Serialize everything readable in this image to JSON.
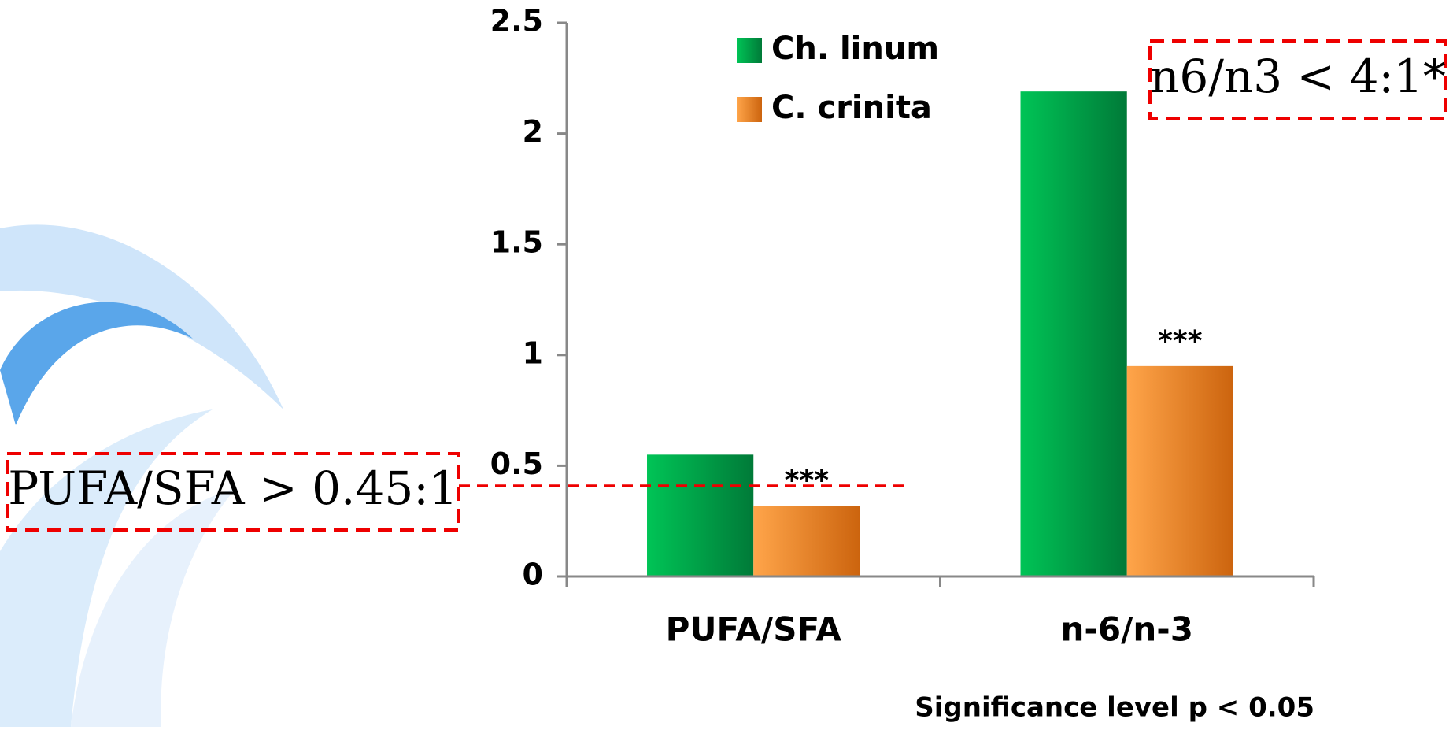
{
  "chart_data": {
    "type": "bar",
    "categories": [
      "PUFA/SFA",
      "n-6/n-3"
    ],
    "series": [
      {
        "name": "Ch. linum",
        "color": "#00a84a",
        "values": [
          0.55,
          2.19
        ]
      },
      {
        "name": "C. crinita",
        "color": "#f08a24",
        "values": [
          0.32,
          0.95
        ],
        "annotations": [
          "***",
          "***"
        ]
      }
    ],
    "ylim": [
      0,
      2.5
    ],
    "yticks": [
      0,
      0.5,
      1,
      1.5,
      2,
      2.5
    ],
    "threshold_line": 0.41,
    "threshold_labels": [
      "PUFA/SFA > 0.45:1",
      "n6/n3 < 4:1*"
    ],
    "footnote": "Significance level p < 0.05"
  }
}
